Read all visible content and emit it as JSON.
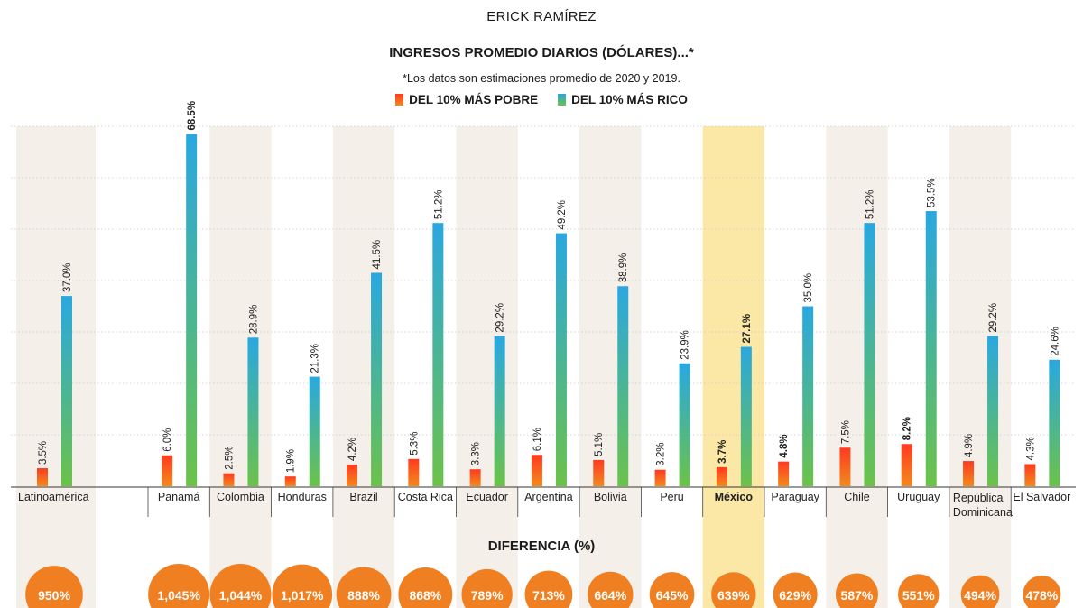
{
  "header": {
    "author": "ERICK RAMÍREZ",
    "title": "INGRESOS PROMEDIO DIARIOS (DÓLARES)...*",
    "subtitle": "*Los datos son estimaciones promedio de 2020 y 2019."
  },
  "legend": [
    {
      "label": "DEL 10% MÁS POBRE",
      "color": "#f0441f"
    },
    {
      "label": "DEL 10% MÁS RICO",
      "color": "#2aa5d8"
    }
  ],
  "colors": {
    "poor_top": "#ff3a1f",
    "poor_bottom": "#f28a1e",
    "rich_top": "#29a8e0",
    "rich_bottom": "#6cc24a",
    "band": "#f4efe9",
    "highlight": "#fbe8a6",
    "circle": "#f07f22"
  },
  "diff_title": "DIFERENCIA (%)",
  "chart_data": {
    "type": "bar",
    "categories": [
      "Latinoamérica",
      "Panamá",
      "Colombia",
      "Honduras",
      "Brazil",
      "Costa Rica",
      "Ecuador",
      "Argentina",
      "Bolivia",
      "Peru",
      "México",
      "Paraguay",
      "Chile",
      "Uruguay",
      "República Dominicana",
      "El Salvador"
    ],
    "series": [
      {
        "name": "DEL 10% MÁS POBRE",
        "values": [
          3.5,
          6.0,
          2.5,
          1.9,
          4.2,
          5.3,
          3.3,
          6.1,
          5.1,
          3.2,
          3.7,
          4.8,
          7.5,
          8.2,
          4.9,
          4.3
        ],
        "labels": [
          "3.5%",
          "6.0%",
          "2.5%",
          "1.9%",
          "4.2%",
          "5.3%",
          "3.3%",
          "6.1%",
          "5.1%",
          "3.2%",
          "3.7%",
          "4.8%",
          "7.5%",
          "8.2%",
          "4.9%",
          "4.3%"
        ]
      },
      {
        "name": "DEL 10% MÁS RICO",
        "values": [
          37.0,
          68.5,
          28.9,
          21.3,
          41.5,
          51.2,
          29.2,
          49.2,
          38.9,
          23.9,
          27.1,
          35.0,
          51.2,
          53.5,
          29.2,
          24.6
        ],
        "labels": [
          "37.0%",
          "68.5%",
          "28.9%",
          "21.3%",
          "41.5%",
          "51.2%",
          "29.2%",
          "49.2%",
          "38.9%",
          "23.9%",
          "27.1%",
          "35.0%",
          "51.2%",
          "53.5%",
          "29.2%",
          "24.6%"
        ]
      }
    ],
    "differences": [
      950,
      1045,
      1044,
      1017,
      888,
      868,
      789,
      713,
      664,
      645,
      639,
      629,
      587,
      551,
      494,
      478
    ],
    "difference_labels": [
      "950%",
      "1,045%",
      "1,044%",
      "1,017%",
      "888%",
      "868%",
      "789%",
      "713%",
      "664%",
      "645%",
      "639%",
      "629%",
      "587%",
      "551%",
      "494%",
      "478%"
    ],
    "highlight_category": "México",
    "bold_labels": [
      "Panamá:rich",
      "México:poor",
      "México:rich",
      "Paraguay:poor",
      "Uruguay:poor"
    ],
    "ylim": [
      0,
      70
    ],
    "grid": true
  }
}
